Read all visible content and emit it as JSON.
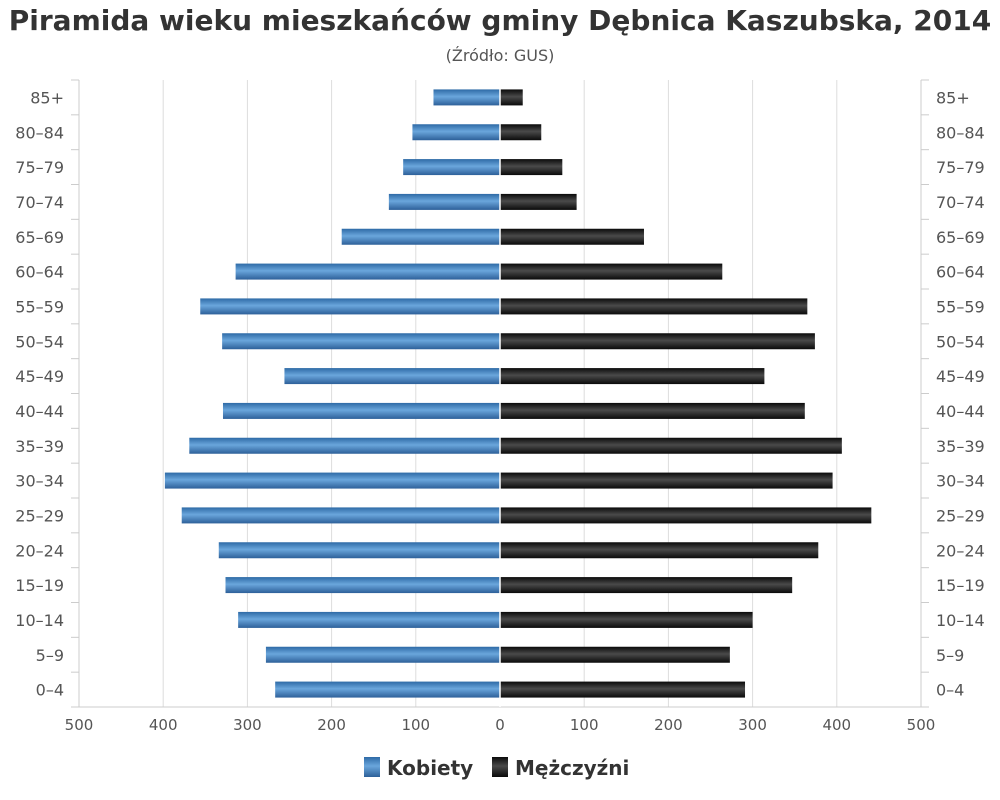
{
  "chart_data": {
    "type": "bar",
    "orientation": "horizontal-pyramid",
    "title": "Piramida wieku mieszkańców gminy Dębnica Kaszubska, 2014",
    "subtitle": "(Źródło: GUS)",
    "categories": [
      "85+",
      "80–84",
      "75–79",
      "70–74",
      "65–69",
      "60–64",
      "55–59",
      "50–54",
      "45–49",
      "40–44",
      "35–39",
      "30–34",
      "25–29",
      "20–24",
      "15–19",
      "10–14",
      "5–9",
      "0–4"
    ],
    "series": [
      {
        "name": "Kobiety",
        "side": "left",
        "color": "#3f7dbf",
        "values": [
          79,
          104,
          115,
          132,
          188,
          314,
          356,
          330,
          256,
          329,
          369,
          398,
          378,
          334,
          326,
          311,
          278,
          267
        ]
      },
      {
        "name": "Mężczyźni",
        "side": "right",
        "color": "#1a1a1a",
        "values": [
          27,
          49,
          74,
          91,
          171,
          264,
          365,
          374,
          314,
          362,
          406,
          395,
          441,
          378,
          347,
          300,
          273,
          291
        ]
      }
    ],
    "xlim": [
      -500,
      500
    ],
    "xticks": [
      -500,
      -400,
      -300,
      -200,
      -100,
      0,
      100,
      200,
      300,
      400,
      500
    ],
    "xtick_labels": [
      "500",
      "400",
      "300",
      "200",
      "100",
      "0",
      "100",
      "200",
      "300",
      "400",
      "500"
    ],
    "grid": true,
    "legend_position": "bottom"
  }
}
